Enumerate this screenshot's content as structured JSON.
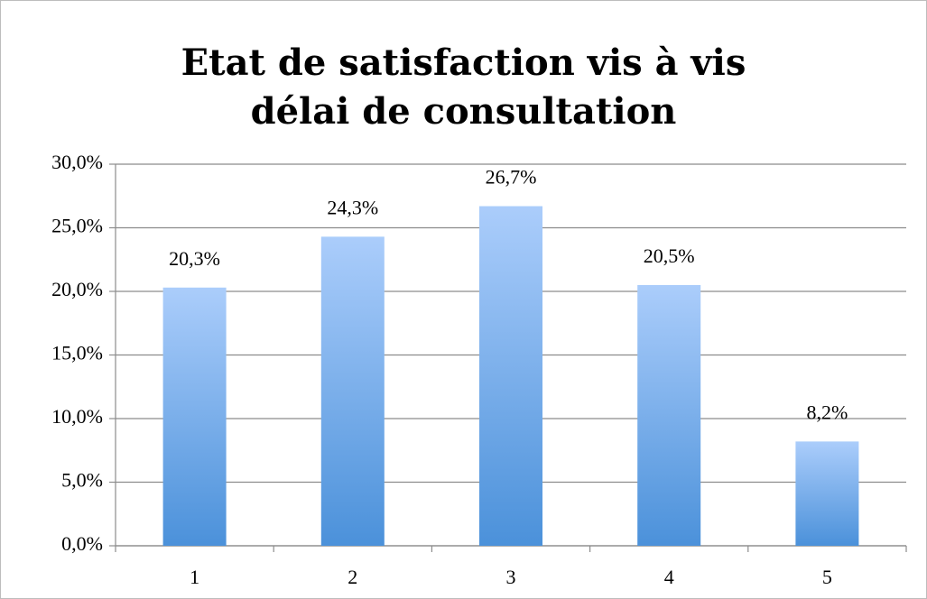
{
  "chart_data": {
    "type": "bar",
    "title": "Etat de satisfaction vis à vis délai de consultation",
    "categories": [
      "1",
      "2",
      "3",
      "4",
      "5"
    ],
    "values": [
      20.3,
      24.3,
      26.7,
      20.5,
      8.2
    ],
    "value_labels": [
      "20,3%",
      "24,3%",
      "26,7%",
      "20,5%",
      "8,2%"
    ],
    "gradient": [
      "#abcdfb",
      "#4b91da"
    ],
    "ylim": [
      0,
      30
    ],
    "yticks": [
      {
        "value": 0,
        "label": "0,0%"
      },
      {
        "value": 5,
        "label": "5,0%"
      },
      {
        "value": 10,
        "label": "10,0%"
      },
      {
        "value": 15,
        "label": "15,0%"
      },
      {
        "value": 20,
        "label": "20,0%"
      },
      {
        "value": 25,
        "label": "25,0%"
      },
      {
        "value": 30,
        "label": "30,0%"
      }
    ],
    "grid": true
  }
}
